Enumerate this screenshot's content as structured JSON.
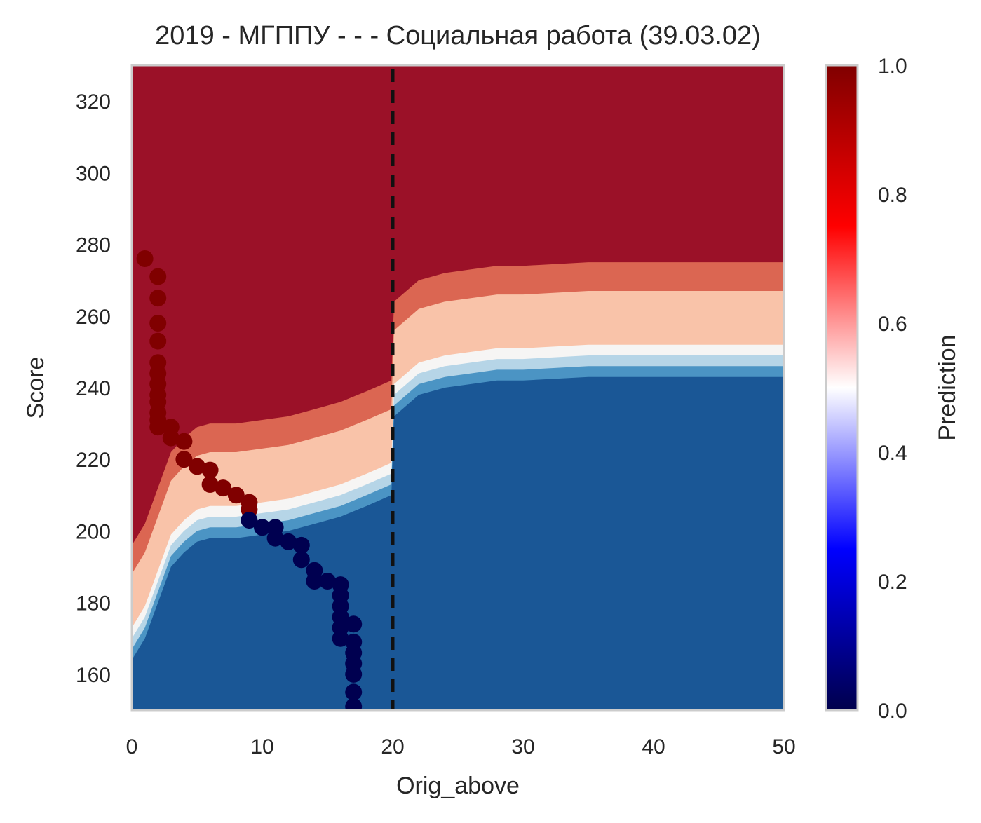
{
  "chart_data": {
    "type": "contour",
    "title": "2019 - МГППУ - - - Социальная работа (39.03.02)",
    "xlabel": "Orig_above",
    "ylabel": "Score",
    "xlim": [
      0,
      50
    ],
    "ylim": [
      150,
      330
    ],
    "xticks": [
      "0",
      "10",
      "20",
      "30",
      "40",
      "50"
    ],
    "xtick_values": [
      0,
      10,
      20,
      30,
      40,
      50
    ],
    "yticks": [
      "160",
      "180",
      "200",
      "220",
      "240",
      "260",
      "280",
      "300",
      "320"
    ],
    "ytick_values": [
      160,
      180,
      200,
      220,
      240,
      260,
      280,
      300,
      320
    ],
    "grid": false,
    "threshold_line": {
      "x": 20,
      "style": "dashed",
      "color": "#111111"
    },
    "colorbar": {
      "label": "Prediction",
      "range": [
        0,
        1
      ],
      "ticks": [
        "0.0",
        "0.2",
        "0.4",
        "0.6",
        "0.8",
        "1.0"
      ],
      "tick_values": [
        0,
        0.2,
        0.4,
        0.6,
        0.8,
        1.0
      ],
      "colormap": "seismic"
    },
    "contour_levels": [
      {
        "range": "0.0-0.2",
        "color": "#1a5796"
      },
      {
        "range": "0.2-0.4",
        "color": "#4b94c4"
      },
      {
        "range": "0.4-0.5",
        "color": "#b6d5e7"
      },
      {
        "range": "0.5-0.6",
        "color": "#f6f5f4"
      },
      {
        "range": "0.6-0.7",
        "color": "#f9c3a9"
      },
      {
        "range": "0.7-0.9",
        "color": "#db6652"
      },
      {
        "range": "0.9-1.0",
        "color": "#9b1128"
      }
    ],
    "boundary_profile": {
      "x": [
        0,
        1,
        2,
        3,
        4,
        5,
        6,
        8,
        10,
        12,
        14,
        16,
        18,
        19.9,
        20.1,
        22,
        24,
        26,
        28,
        30,
        35,
        40,
        45,
        50
      ],
      "score_50pct": [
        170,
        176,
        186,
        196,
        200,
        203,
        204,
        204,
        205,
        206,
        208,
        210,
        213,
        216,
        238,
        244,
        246,
        247,
        248,
        248,
        249,
        249,
        249,
        249
      ]
    },
    "scatter_admitted": {
      "color": "#800000",
      "x": [
        1,
        2,
        2,
        2,
        2,
        2,
        2,
        2,
        2,
        2,
        2,
        2,
        2,
        3,
        3,
        4,
        4,
        5,
        6,
        6,
        7,
        8,
        9,
        9
      ],
      "y": [
        276,
        271,
        265,
        258,
        253,
        247,
        244,
        241,
        238,
        236,
        233,
        231,
        229,
        229,
        226,
        225,
        220,
        218,
        217,
        213,
        212,
        210,
        208,
        206
      ]
    },
    "scatter_rejected": {
      "color": "#000050",
      "x": [
        9,
        10,
        11,
        11,
        12,
        13,
        13,
        14,
        14,
        15,
        16,
        16,
        16,
        16,
        16,
        16,
        17,
        17,
        17,
        17,
        17,
        17,
        17
      ],
      "y": [
        203,
        201,
        201,
        198,
        197,
        196,
        192,
        189,
        186,
        186,
        185,
        182,
        179,
        176,
        173,
        170,
        174,
        169,
        166,
        163,
        160,
        155,
        151
      ]
    }
  }
}
